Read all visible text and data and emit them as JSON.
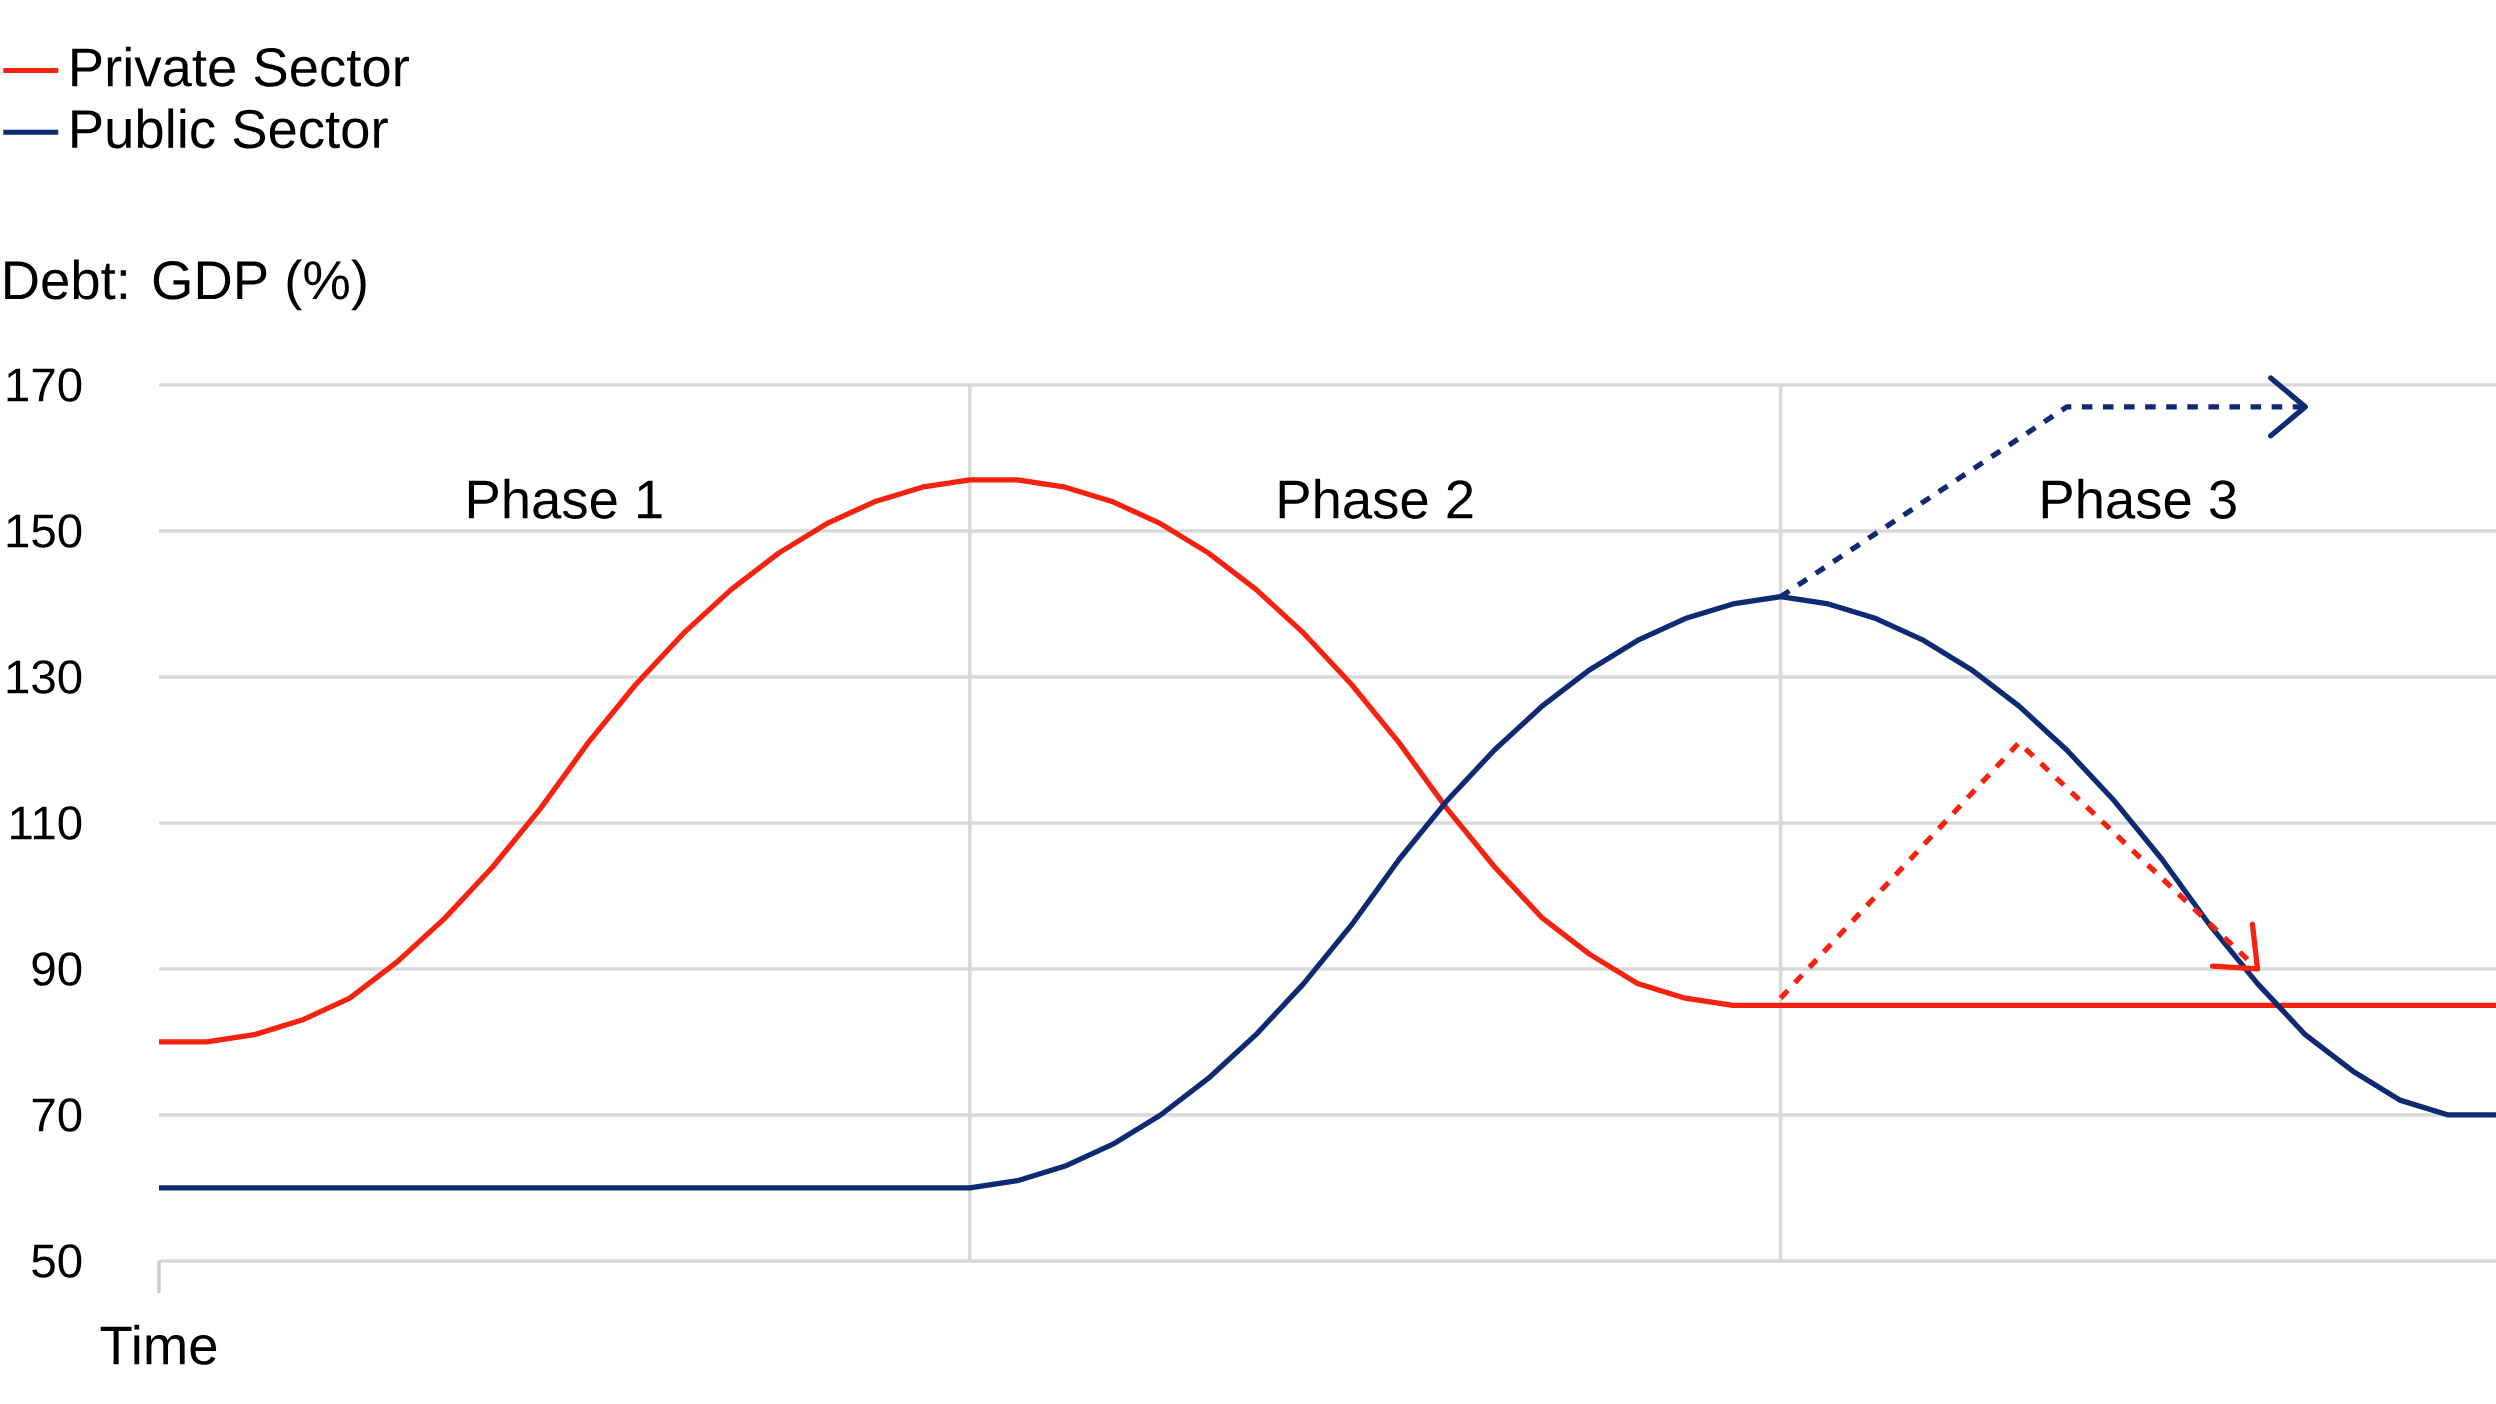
{
  "chart_data": {
    "type": "line",
    "xlabel": "Time",
    "ylabel": "Debt: GDP (%)",
    "series": [
      {
        "name": "Private Sector",
        "color": "#f5220f",
        "values": [
          80,
          80,
          81,
          83,
          86,
          91,
          97,
          104,
          112,
          121,
          129,
          136,
          142,
          147,
          151,
          154,
          156,
          157,
          157,
          156,
          154,
          151,
          147,
          142,
          136,
          129,
          121,
          112,
          104,
          97,
          92,
          88,
          86,
          85,
          85,
          85,
          85,
          85,
          85,
          85,
          85,
          85,
          85,
          85,
          85,
          85,
          85,
          85,
          85,
          85
        ]
      },
      {
        "name": "Public Sector",
        "color": "#0d2a73",
        "values": [
          60,
          60,
          60,
          60,
          60,
          60,
          60,
          60,
          60,
          60,
          60,
          60,
          60,
          60,
          60,
          60,
          60,
          60,
          61,
          63,
          66,
          70,
          75,
          81,
          88,
          96,
          105,
          113,
          120,
          126,
          131,
          135,
          138,
          140,
          141,
          140,
          138,
          135,
          131,
          126,
          120,
          113,
          105,
          96,
          88,
          81,
          76,
          72,
          70,
          70
        ]
      },
      {
        "color": "#0d2a73",
        "line_style": "dotted",
        "values": [
          null,
          null,
          null,
          null,
          null,
          null,
          null,
          null,
          null,
          null,
          null,
          null,
          null,
          null,
          null,
          null,
          null,
          null,
          null,
          null,
          null,
          null,
          null,
          null,
          null,
          null,
          null,
          null,
          null,
          null,
          null,
          null,
          null,
          null,
          141,
          null,
          null,
          null,
          null,
          null,
          167,
          null,
          null,
          null,
          null,
          167,
          null,
          null,
          null,
          null
        ]
      },
      {
        "color": "#f5220f",
        "line_style": "dotted",
        "values": [
          null,
          null,
          null,
          null,
          null,
          null,
          null,
          null,
          null,
          null,
          null,
          null,
          null,
          null,
          null,
          null,
          null,
          null,
          null,
          null,
          null,
          null,
          null,
          null,
          null,
          null,
          null,
          null,
          null,
          null,
          null,
          null,
          null,
          null,
          86,
          null,
          null,
          null,
          null,
          121,
          null,
          null,
          null,
          null,
          90,
          null,
          null,
          null,
          null,
          null
        ]
      }
    ],
    "categories": [
      null,
      null,
      null,
      null,
      null,
      null,
      null,
      null,
      null,
      null,
      null,
      null,
      null,
      null,
      null,
      null,
      null,
      null,
      null,
      null,
      null,
      null,
      null,
      null,
      null,
      null,
      null,
      null,
      null,
      null,
      null,
      null,
      null,
      null,
      null,
      null,
      null,
      null,
      null,
      null,
      null,
      null,
      null,
      null,
      null,
      null,
      null,
      null,
      null,
      null
    ],
    "ylim": [
      50,
      170
    ],
    "yticks": [
      50,
      70,
      90,
      110,
      130,
      150,
      170
    ],
    "grid": "y",
    "legend": "top left",
    "marker": "none",
    "annotations": [
      "Phase 1",
      "Phase 2",
      "Phase 3"
    ]
  }
}
